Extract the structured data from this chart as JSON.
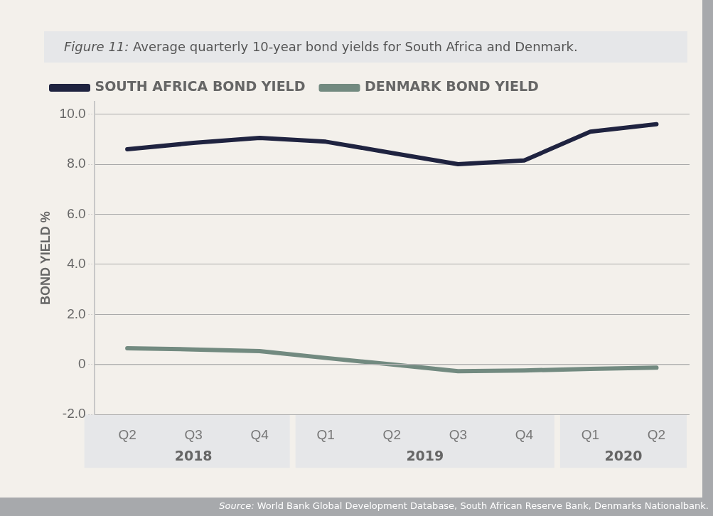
{
  "chart_data": {
    "type": "line",
    "title": "Figure 11: Average quarterly 10-year bond yields for South Africa and Denmark.",
    "ylabel": "BOND YIELD %",
    "categories": [
      "Q2",
      "Q3",
      "Q4",
      "Q1",
      "Q2",
      "Q3",
      "Q4",
      "Q1",
      "Q2"
    ],
    "series": [
      {
        "name": "SOUTH AFRICA BOND YIELD",
        "color": "#1f2340",
        "values": [
          8.6,
          8.85,
          9.05,
          8.9,
          8.45,
          8.0,
          8.15,
          9.3,
          9.6
        ]
      },
      {
        "name": "DENMARK BOND YIELD",
        "color": "#728a80",
        "values": [
          0.65,
          0.6,
          0.53,
          0.26,
          0.0,
          -0.27,
          -0.24,
          -0.18,
          -0.13
        ]
      }
    ],
    "ylim": [
      -2,
      10.5
    ],
    "yticks": [
      {
        "value": -2,
        "label": "-2.0"
      },
      0,
      {
        "value": 2,
        "label": "2.0"
      },
      {
        "value": 4,
        "label": "4.0"
      },
      {
        "value": 6,
        "label": "6.0"
      },
      {
        "value": 8,
        "label": "8.0"
      },
      {
        "value": 10,
        "label": "10.0"
      }
    ],
    "grid": "y",
    "legend": "top",
    "marker": "none",
    "line_style": "solid",
    "annotations": [
      "2018",
      "2019",
      "2020",
      "Source: World Bank Global Development Database, South African Reserve Bank, Denmarks Nationalbank."
    ]
  }
}
